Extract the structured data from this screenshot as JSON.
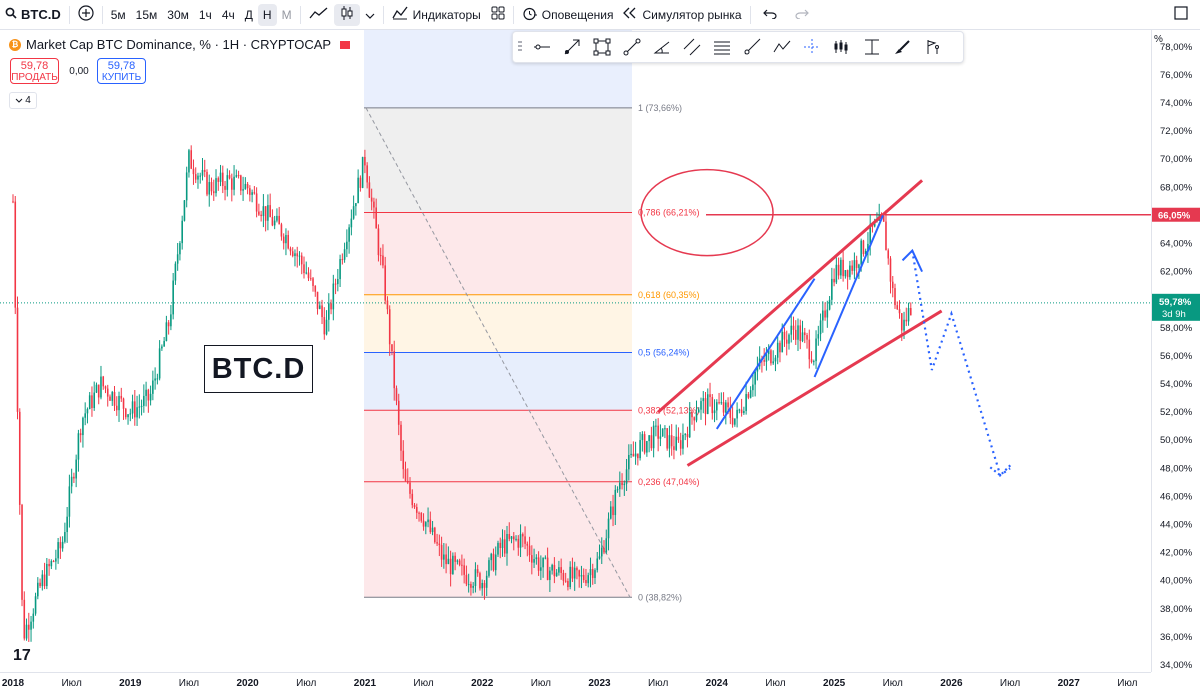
{
  "toolbar": {
    "symbol": "BTC.D",
    "add_icon": "+",
    "intervals": [
      "5м",
      "15м",
      "30м",
      "1ч",
      "4ч",
      "Д",
      "Н",
      "М"
    ],
    "active_interval": "Н",
    "indicators_label": "Индикаторы",
    "alerts_label": "Оповещения",
    "replay_label": "Симулятор рынка",
    "undo_icon": "undo-icon",
    "redo_icon": "redo-icon"
  },
  "legend": {
    "title": "Market Cap BTC Dominance, % · 1H · CRYPTOCAP",
    "coin": "₿"
  },
  "trade": {
    "sell_price": "59,78",
    "sell_label": "ПРОДАТЬ",
    "spread": "0,00",
    "buy_price": "59,78",
    "buy_label": "КУПИТЬ",
    "collapse_count": "4"
  },
  "annotation_text": "BTC.D",
  "tv_logo": "17",
  "price_axis": {
    "unit": "%",
    "ticks": [
      "78,00%",
      "76,00%",
      "74,00%",
      "72,00%",
      "70,00%",
      "68,00%",
      "66,00%",
      "64,00%",
      "62,00%",
      "60,00%",
      "58,00%",
      "56,00%",
      "54,00%",
      "52,00%",
      "50,00%",
      "48,00%",
      "46,00%",
      "44,00%",
      "42,00%",
      "40,00%",
      "38,00%",
      "36,00%",
      "34,00%"
    ],
    "hline_label": "66,05%",
    "last_price_label": "59,78%",
    "countdown_label": "3d 9h"
  },
  "time_axis": {
    "labels": [
      "2018",
      "Июл",
      "2019",
      "Июл",
      "2020",
      "Июл",
      "2021",
      "Июл",
      "2022",
      "Июл",
      "2023",
      "Июл",
      "2024",
      "Июл",
      "2025",
      "Июл",
      "2026",
      "Июл",
      "2027",
      "Июл"
    ]
  },
  "fib_levels": [
    {
      "label": "1 (73,66%)",
      "value": 73.66,
      "color": "#787b86"
    },
    {
      "label": "0,786 (66,21%)",
      "value": 66.21,
      "color": "#f23645"
    },
    {
      "label": "0,618 (60,35%)",
      "value": 60.35,
      "color": "#ff9800"
    },
    {
      "label": "0,5 (56,24%)",
      "value": 56.24,
      "color": "#2962ff"
    },
    {
      "label": "0,382 (52,13%)",
      "value": 52.13,
      "color": "#f23645"
    },
    {
      "label": "0,236 (47,04%)",
      "value": 47.04,
      "color": "#f23645"
    },
    {
      "label": "0 (38,82%)",
      "value": 38.82,
      "color": "#787b86"
    }
  ],
  "colors": {
    "up": "#089981",
    "down": "#f23645",
    "trend": "#e53950",
    "wave": "#2962ff",
    "hline": "#e53950"
  },
  "chart_data": {
    "type": "candlestick",
    "y_unit": "%",
    "ylim": [
      33.5,
      79.2
    ],
    "x_range": [
      "2018-01",
      "2027-12"
    ],
    "current_price": 59.78,
    "horizontal_line": 66.05,
    "series": [
      {
        "name": "BTC.D",
        "x": [
          "2018-01",
          "2018-02",
          "2018-04",
          "2018-06",
          "2018-08",
          "2018-10",
          "2019-01",
          "2019-03",
          "2019-05",
          "2019-07",
          "2019-09",
          "2019-11",
          "2020-01",
          "2020-03",
          "2020-05",
          "2020-07",
          "2020-09",
          "2020-11",
          "2021-01",
          "2021-03",
          "2021-05",
          "2021-07",
          "2021-09",
          "2021-11",
          "2022-01",
          "2022-03",
          "2022-05",
          "2022-07",
          "2022-09",
          "2022-11",
          "2023-01",
          "2023-03",
          "2023-05",
          "2023-07",
          "2023-09",
          "2023-11",
          "2024-01",
          "2024-03",
          "2024-05",
          "2024-07",
          "2024-09",
          "2024-11",
          "2025-01",
          "2025-03",
          "2025-05",
          "2025-06",
          "2025-07",
          "2025-08",
          "2025-09"
        ],
        "values": [
          67.0,
          36.0,
          40.0,
          42.5,
          51.5,
          54.0,
          52.0,
          53.0,
          58.5,
          70.0,
          68.0,
          68.5,
          68.0,
          66.0,
          64.5,
          62.0,
          58.0,
          64.5,
          70.0,
          61.0,
          47.0,
          44.5,
          41.5,
          40.5,
          40.0,
          42.5,
          43.0,
          41.0,
          40.5,
          40.0,
          41.5,
          47.0,
          49.5,
          50.5,
          49.5,
          52.5,
          52.5,
          51.5,
          55.0,
          56.5,
          58.0,
          56.0,
          62.0,
          62.5,
          65.0,
          65.5,
          60.5,
          58.0,
          59.78
        ]
      }
    ],
    "drawings": {
      "trend_upper": {
        "from": [
          "2023-07",
          52.0
        ],
        "to": [
          "2025-10",
          68.5
        ]
      },
      "trend_lower": {
        "from": [
          "2023-10",
          48.2
        ],
        "to": [
          "2025-12",
          59.2
        ]
      },
      "circle_center": [
        "2023-12",
        66.2
      ],
      "projection_points": [
        [
          "2025-09",
          63.5
        ],
        [
          "2025-11",
          55.0
        ],
        [
          "2026-01",
          59.0
        ],
        [
          "2026-06",
          47.5
        ],
        [
          "2026-07",
          48.0
        ]
      ]
    }
  }
}
